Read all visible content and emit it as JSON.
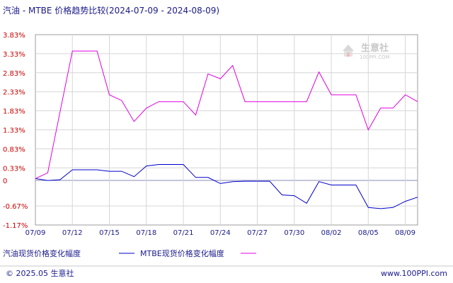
{
  "header": {
    "title": "汽油 - MTBE 价格趋势比较(2024-07-09 - 2024-08-09)"
  },
  "watermark": {
    "brand": "生意社",
    "site": "100PPI.COM"
  },
  "footer": {
    "copyright": "© 2025.05 生意社",
    "url": "www.100PPI.com"
  },
  "chart_data": {
    "type": "line",
    "title": "汽油 - MTBE 价格趋势比较(2024-07-09 - 2024-08-09)",
    "xlabel": "",
    "ylabel": "",
    "ylim": [
      -1.17,
      3.83
    ],
    "y_ticks": [
      "3.83%",
      "3.33%",
      "2.83%",
      "2.33%",
      "1.83%",
      "1.33%",
      "0.83%",
      "0.33%",
      "0",
      "-0.67%",
      "-1.17%"
    ],
    "y_tick_values": [
      3.83,
      3.33,
      2.83,
      2.33,
      1.83,
      1.33,
      0.83,
      0.33,
      0,
      -0.67,
      -1.17
    ],
    "x_ticks": [
      "07/09",
      "07/12",
      "07/15",
      "07/18",
      "07/21",
      "07/24",
      "07/27",
      "07/30",
      "08/02",
      "08/05",
      "08/09"
    ],
    "x_tick_index": [
      0,
      3,
      6,
      9,
      12,
      15,
      18,
      21,
      24,
      27,
      30
    ],
    "grid": true,
    "legend_position": "bottom-left",
    "series": [
      {
        "name": "汽油现货价格变化幅度",
        "color": "#0000cc",
        "values": [
          0.05,
          0.0,
          0.02,
          0.28,
          0.28,
          0.28,
          0.24,
          0.24,
          0.1,
          0.38,
          0.42,
          0.42,
          0.42,
          0.08,
          0.08,
          -0.08,
          -0.03,
          -0.02,
          -0.02,
          -0.02,
          -0.38,
          -0.4,
          -0.6,
          -0.03,
          -0.12,
          -0.12,
          -0.12,
          -0.71,
          -0.74,
          -0.71,
          -0.55,
          -0.44
        ]
      },
      {
        "name": "MTBE现货价格变化幅度",
        "color": "#e000e0",
        "values": [
          0.05,
          0.2,
          1.8,
          3.4,
          3.4,
          3.4,
          2.25,
          2.1,
          1.55,
          1.9,
          2.07,
          2.07,
          2.07,
          1.72,
          2.8,
          2.67,
          3.02,
          2.07,
          2.07,
          2.07,
          2.07,
          2.07,
          2.07,
          2.85,
          2.25,
          2.25,
          2.25,
          1.33,
          1.9,
          1.9,
          2.25,
          2.07
        ]
      }
    ]
  }
}
